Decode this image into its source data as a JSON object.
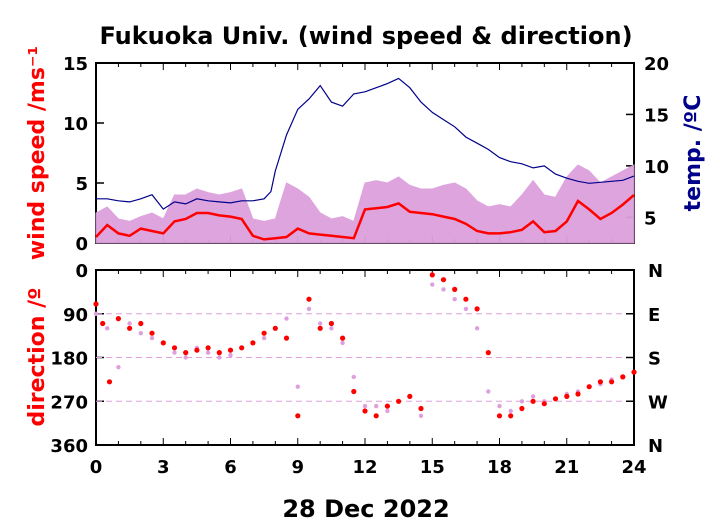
{
  "title": "Fukuoka Univ. (wind speed & direction)",
  "date_label": "28 Dec 2022",
  "colors": {
    "wind": "#ff0000",
    "gust": "#dda0dd",
    "temp": "#00008b",
    "axis": "#000000"
  },
  "chart_data": [
    {
      "type": "line",
      "panel": "top",
      "ylabel": "wind speed /ms⁻¹",
      "y2label": "temp. /ºC",
      "xlim": [
        0,
        24
      ],
      "ylim": [
        0,
        15
      ],
      "y2lim": [
        2.5,
        20
      ],
      "yticks": [
        "0",
        "5",
        "10",
        "15"
      ],
      "y2ticks": [
        "5",
        "10",
        "15",
        "20"
      ],
      "series": [
        {
          "role": "wind speed",
          "style": "line",
          "x": [
            0,
            0.5,
            1,
            1.5,
            2,
            2.5,
            3,
            3.5,
            4,
            4.5,
            5,
            5.5,
            6,
            6.5,
            7,
            7.5,
            8,
            8.5,
            9,
            9.5,
            10,
            10.5,
            11,
            11.5,
            12,
            12.5,
            13,
            13.5,
            14,
            14.5,
            15,
            15.5,
            16,
            16.5,
            17,
            17.5,
            18,
            18.5,
            19,
            19.5,
            20,
            20.5,
            21,
            21.5,
            22,
            22.5,
            23,
            23.5,
            24
          ],
          "values": [
            0.5,
            1.5,
            0.8,
            0.6,
            1.2,
            1.0,
            0.8,
            1.8,
            2.0,
            2.5,
            2.5,
            2.3,
            2.2,
            2.0,
            0.6,
            0.3,
            0.4,
            0.5,
            1.2,
            0.8,
            0.7,
            0.6,
            0.5,
            0.4,
            2.8,
            2.9,
            3.0,
            3.3,
            2.6,
            2.5,
            2.4,
            2.2,
            2.0,
            1.6,
            1.0,
            0.8,
            0.8,
            0.9,
            1.1,
            1.8,
            0.9,
            1.0,
            1.8,
            3.5,
            2.8,
            2.0,
            2.5,
            3.2,
            4.0
          ]
        },
        {
          "role": "gust",
          "style": "band",
          "x": [
            0,
            0.5,
            1,
            1.5,
            2,
            2.5,
            3,
            3.5,
            4,
            4.5,
            5,
            5.5,
            6,
            6.5,
            7,
            7.5,
            8,
            8.5,
            9,
            9.5,
            10,
            10.5,
            11,
            11.5,
            12,
            12.5,
            13,
            13.5,
            14,
            14.5,
            15,
            15.5,
            16,
            16.5,
            17,
            17.5,
            18,
            18.5,
            19,
            19.5,
            20,
            20.5,
            21,
            21.5,
            22,
            22.5,
            23,
            23.5,
            24
          ],
          "values": [
            2.5,
            3.0,
            2.0,
            1.8,
            2.2,
            2.5,
            2.0,
            4.0,
            4.0,
            4.5,
            4.2,
            4.0,
            4.2,
            4.5,
            2.0,
            1.8,
            2.0,
            5.0,
            4.5,
            3.8,
            2.5,
            2.0,
            2.2,
            1.8,
            5.0,
            5.2,
            5.0,
            5.5,
            4.8,
            4.5,
            4.5,
            4.8,
            5.0,
            4.5,
            3.5,
            3.0,
            3.2,
            3.0,
            4.0,
            5.2,
            4.0,
            3.8,
            5.5,
            6.5,
            6.0,
            5.0,
            5.5,
            6.0,
            6.5
          ]
        },
        {
          "role": "temperature",
          "style": "line",
          "axis": "right",
          "x": [
            0,
            0.5,
            1,
            1.5,
            2,
            2.5,
            3,
            3.5,
            4,
            4.5,
            5,
            5.5,
            6,
            6.5,
            7,
            7.5,
            7.8,
            8,
            8.5,
            9,
            9.5,
            10,
            10.5,
            11,
            11.5,
            12,
            12.5,
            13,
            13.5,
            14,
            14.5,
            15,
            15.5,
            16,
            16.5,
            17,
            17.5,
            18,
            18.5,
            19,
            19.5,
            20,
            20.5,
            21,
            21.5,
            22,
            22.5,
            23,
            23.5,
            24
          ],
          "values": [
            6.8,
            6.8,
            6.6,
            6.5,
            6.8,
            7.2,
            5.8,
            6.5,
            6.3,
            6.8,
            6.6,
            6.5,
            6.4,
            6.6,
            6.6,
            6.8,
            7.5,
            9.5,
            13.0,
            15.5,
            16.5,
            17.8,
            16.2,
            15.8,
            17.0,
            17.2,
            17.6,
            18.0,
            18.5,
            17.6,
            16.2,
            15.2,
            14.5,
            13.8,
            12.8,
            12.2,
            11.6,
            10.8,
            10.4,
            10.2,
            9.8,
            10.0,
            9.2,
            8.8,
            8.5,
            8.3,
            8.4,
            8.5,
            8.6,
            9.0
          ]
        }
      ]
    },
    {
      "type": "scatter",
      "panel": "bottom",
      "ylabel": "direction /º",
      "xlabel": "28 Dec 2022",
      "xlim": [
        0,
        24
      ],
      "ylim": [
        0,
        360
      ],
      "yticks": [
        "0",
        "90",
        "180",
        "270",
        "360"
      ],
      "y2ticks": [
        "N",
        "E",
        "S",
        "W",
        "N"
      ],
      "xticks": [
        "0",
        "3",
        "6",
        "9",
        "12",
        "15",
        "18",
        "21",
        "24"
      ],
      "series": [
        {
          "role": "direction (mean)",
          "x": [
            0,
            0.3,
            0.6,
            1,
            1.5,
            2,
            2.5,
            3,
            3.5,
            4,
            4.5,
            5,
            5.5,
            6,
            6.5,
            7,
            7.5,
            8,
            8.5,
            9,
            9.5,
            10,
            10.5,
            11,
            11.5,
            12,
            12.5,
            13,
            13.5,
            14,
            14.5,
            15,
            15.5,
            16,
            16.5,
            17,
            17.5,
            18,
            18.5,
            19,
            19.5,
            20,
            20.5,
            21,
            21.5,
            22,
            22.5,
            23,
            23.5,
            24
          ],
          "values": [
            70,
            110,
            230,
            100,
            120,
            110,
            130,
            150,
            160,
            170,
            165,
            160,
            170,
            165,
            160,
            150,
            130,
            120,
            140,
            300,
            60,
            120,
            110,
            140,
            250,
            290,
            300,
            280,
            270,
            260,
            285,
            10,
            20,
            40,
            60,
            80,
            170,
            300,
            300,
            285,
            270,
            275,
            265,
            260,
            255,
            240,
            230,
            230,
            220,
            210
          ]
        },
        {
          "role": "direction (samples)",
          "x": [
            0,
            0.5,
            1,
            1.5,
            2,
            2.5,
            3,
            3.5,
            4,
            4.5,
            5,
            5.5,
            6,
            6.5,
            7,
            7.5,
            8,
            8.5,
            9,
            9.5,
            10,
            10.5,
            11,
            11.5,
            12,
            12.5,
            13,
            13.5,
            14,
            14.5,
            15,
            15.5,
            16,
            16.5,
            17,
            17.5,
            18,
            18.5,
            19,
            19.5,
            20,
            20.5,
            21,
            21.5,
            22,
            22.5,
            23,
            23.5,
            24
          ],
          "values": [
            90,
            120,
            200,
            110,
            130,
            140,
            150,
            170,
            180,
            160,
            170,
            180,
            175,
            160,
            150,
            140,
            120,
            100,
            240,
            80,
            110,
            120,
            150,
            220,
            280,
            280,
            290,
            270,
            260,
            300,
            30,
            40,
            60,
            80,
            120,
            250,
            280,
            290,
            270,
            260,
            270,
            265,
            255,
            250,
            240,
            235,
            225,
            220,
            210
          ]
        }
      ]
    }
  ]
}
